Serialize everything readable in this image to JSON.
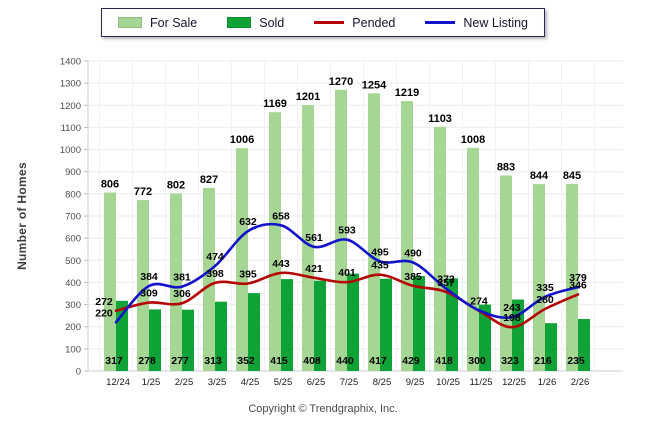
{
  "page": {
    "copyright": "Copyright © Trendgraphix, Inc."
  },
  "chart_data": {
    "type": "bar+line",
    "title": "",
    "xlabel": "",
    "ylabel": "Number of Homes",
    "ylim": [
      0,
      1400
    ],
    "ytick_step": 100,
    "grid": true,
    "legend_position": "top-center",
    "categories": [
      "12/24",
      "1/25",
      "2/25",
      "3/25",
      "4/25",
      "5/25",
      "6/25",
      "7/25",
      "8/25",
      "9/25",
      "10/25",
      "11/25",
      "12/25",
      "1/26",
      "2/26"
    ],
    "series": [
      {
        "name": "For Sale",
        "type": "bar",
        "color": "#a6d693",
        "values": [
          806,
          772,
          802,
          827,
          1006,
          1169,
          1201,
          1270,
          1254,
          1219,
          1103,
          1008,
          883,
          844,
          845
        ],
        "labels": [
          "806",
          "772",
          "802",
          "827",
          "1006",
          "1169",
          "1201",
          "1270",
          "1254",
          "1219",
          "1103",
          "1008",
          "883",
          "844",
          "845"
        ]
      },
      {
        "name": "Sold",
        "type": "bar",
        "color": "#0fa237",
        "values": [
          317,
          278,
          277,
          313,
          352,
          415,
          408,
          440,
          417,
          429,
          418,
          300,
          323,
          216,
          235
        ],
        "labels": [
          "317",
          "278",
          "277",
          "313",
          "352",
          "415",
          "408",
          "440",
          "417",
          "429",
          "418",
          "300",
          "323",
          "216",
          "235"
        ]
      },
      {
        "name": "Pended",
        "type": "line",
        "color": "#b40404",
        "values": [
          272,
          309,
          306,
          398,
          395,
          443,
          421,
          401,
          435,
          385,
          357,
          272,
          198,
          280,
          346
        ],
        "labels": [
          "272",
          "309",
          "306",
          "398",
          "395",
          "443",
          "421",
          "401",
          "435",
          "385",
          "357",
          "",
          "198",
          "280",
          "346"
        ]
      },
      {
        "name": "New Listing",
        "type": "line",
        "color": "#1212cc",
        "values": [
          220,
          384,
          381,
          474,
          632,
          658,
          561,
          593,
          495,
          490,
          372,
          274,
          243,
          335,
          379
        ],
        "labels": [
          "220",
          "384",
          "381",
          "474",
          "632",
          "658",
          "561",
          "593",
          "495",
          "490",
          "372",
          "274",
          "243",
          "335",
          "379"
        ]
      }
    ],
    "colors": {
      "grid_h": "#ebebeb",
      "grid_v": "#f1f1f1",
      "axis": "#c7ccd4",
      "tick_text": "#4d4d4d",
      "xtick_text": "#1a1a1a",
      "data_label": "#000000"
    }
  }
}
